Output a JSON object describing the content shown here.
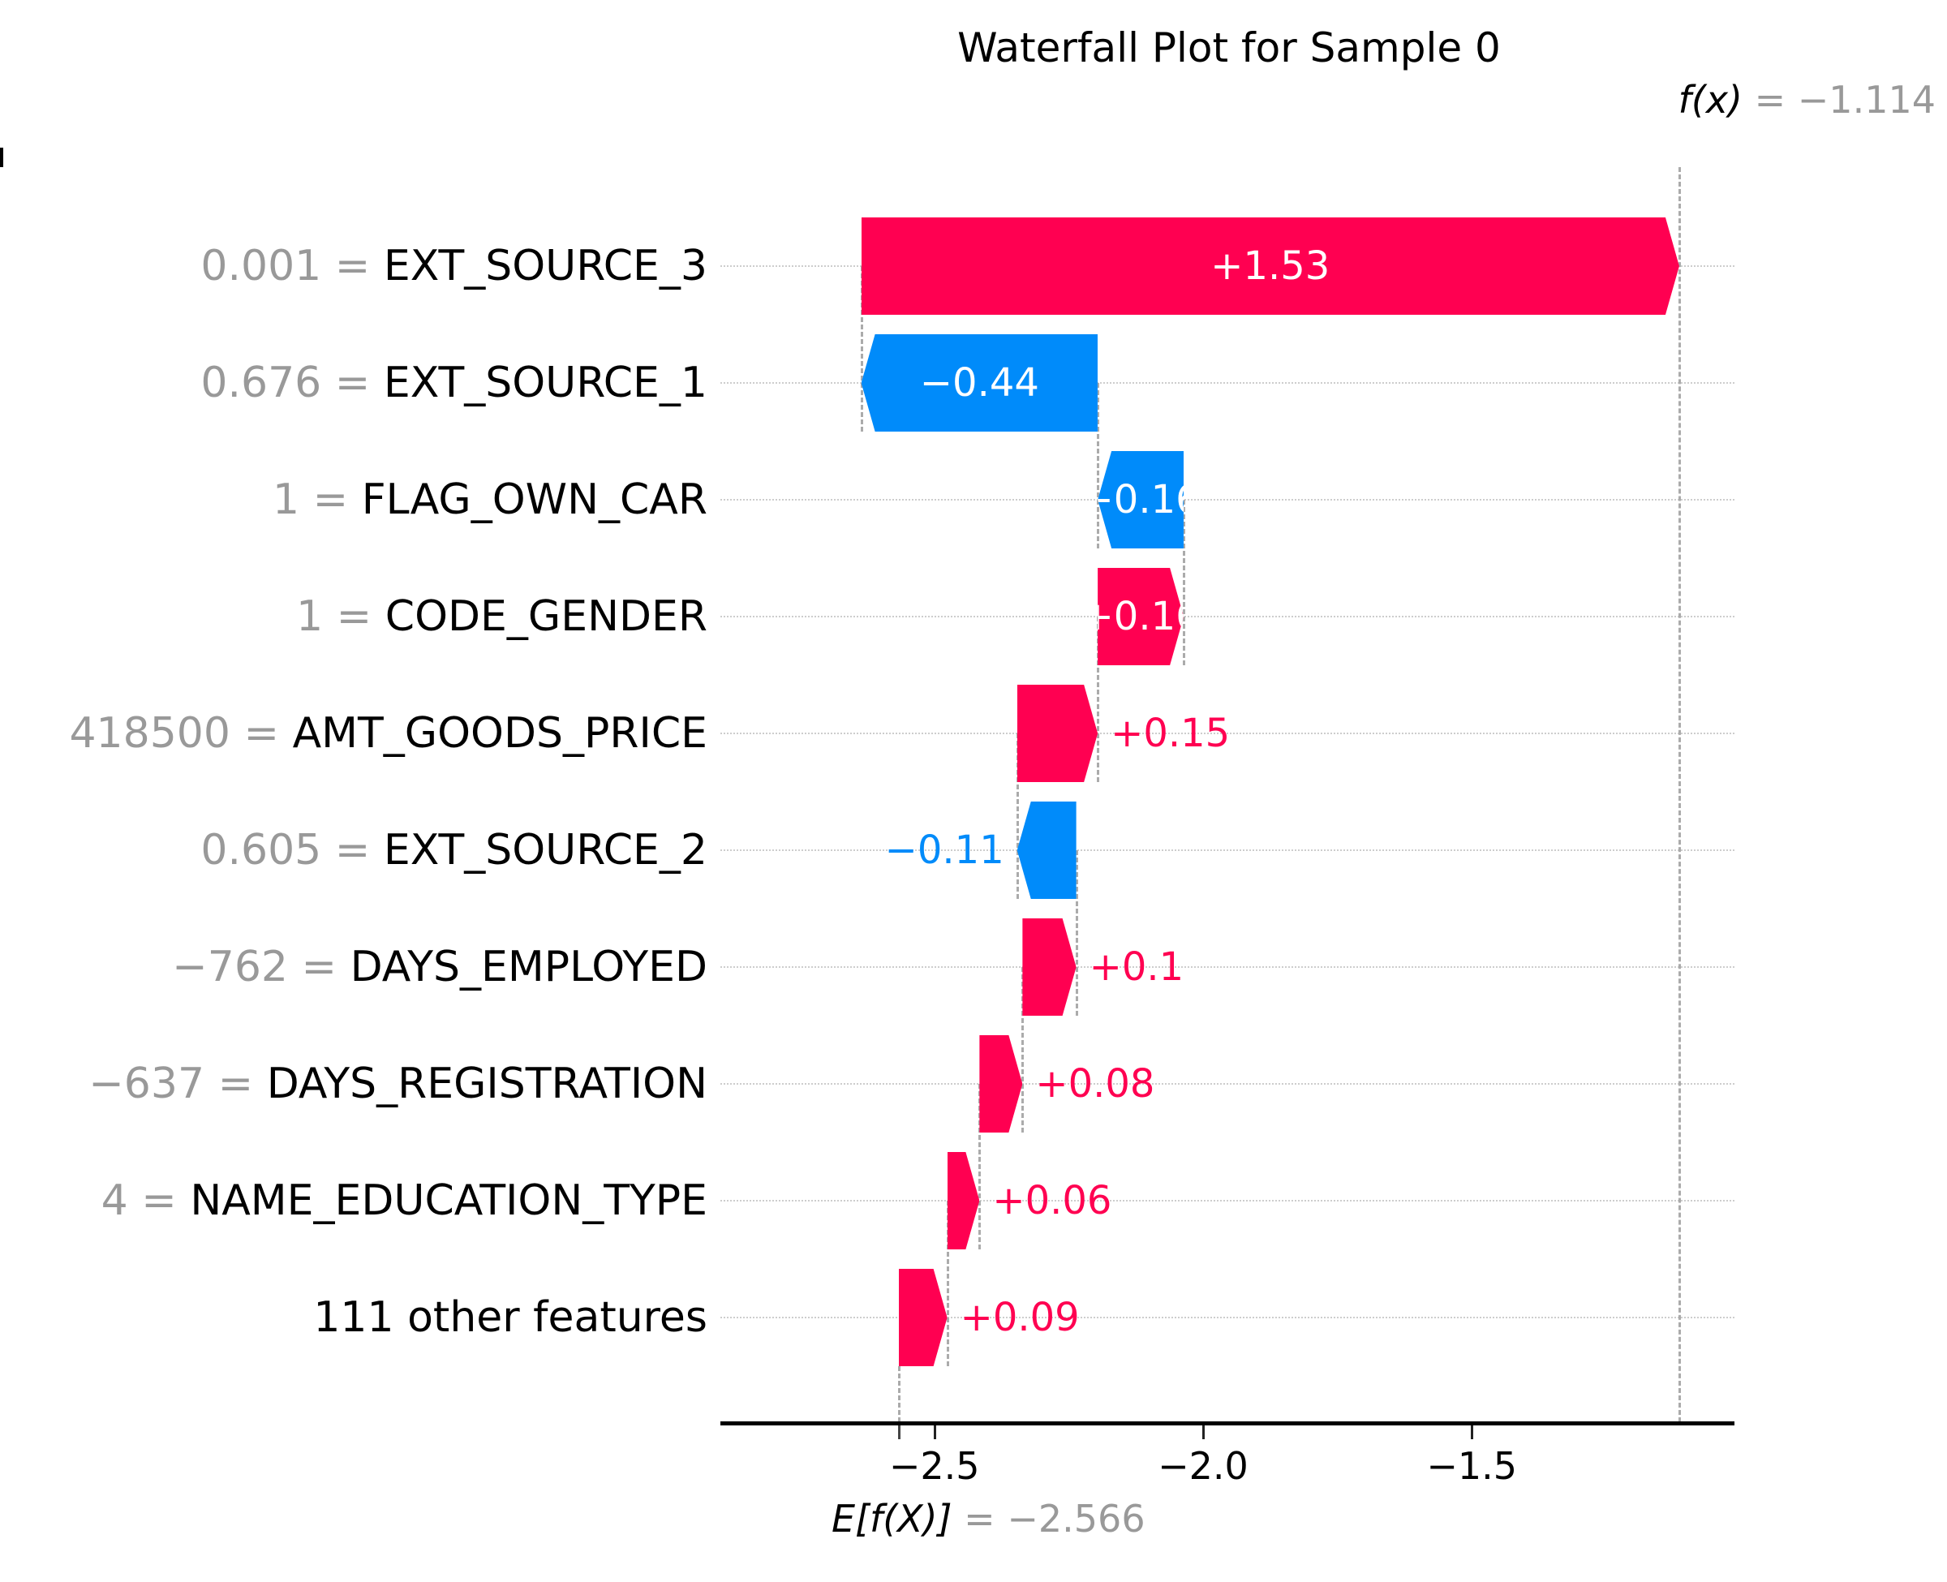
{
  "title": "Waterfall Plot for Sample 0",
  "annotations": {
    "fx": {
      "math": "f(x)",
      "rest": " = −1.114"
    },
    "efx": {
      "math": "E[f(X)]",
      "rest": " = −2.566"
    }
  },
  "colors": {
    "positive": "#ff0051",
    "negative": "#008bfa",
    "gray_text": "#999999",
    "connector": "#ababab",
    "gridline": "#cdcdcd"
  },
  "chart_data": {
    "type": "bar",
    "subtype": "waterfall",
    "title": "Waterfall Plot for Sample 0",
    "base_value": -2.566,
    "prediction": -1.114,
    "xlabel": "",
    "ylabel": "",
    "xlim": [
      -2.9,
      -1.01
    ],
    "x_axis": {
      "ticks": [
        -2.5,
        -2.0,
        -1.5
      ],
      "tick_labels": [
        "−2.5",
        "−2.0",
        "−1.5"
      ]
    },
    "grid": "dotted-row-lines",
    "legend": "none",
    "rows": [
      {
        "feature": "EXT_SOURCE_3",
        "data_value": "0.001",
        "shap": 1.53,
        "label": "+1.53",
        "x0": -2.636,
        "x1": -1.114,
        "direction": "positive",
        "label_placement": "inside"
      },
      {
        "feature": "EXT_SOURCE_1",
        "data_value": "0.676",
        "shap": -0.44,
        "label": "−0.44",
        "x0": -2.636,
        "x1": -2.196,
        "direction": "negative",
        "label_placement": "inside"
      },
      {
        "feature": "FLAG_OWN_CAR",
        "data_value": "1",
        "shap": -0.16,
        "label": "−0.16",
        "x0": -2.196,
        "x1": -2.036,
        "direction": "negative",
        "label_placement": "inside"
      },
      {
        "feature": "CODE_GENDER",
        "data_value": "1",
        "shap": 0.16,
        "label": "+0.16",
        "x0": -2.196,
        "x1": -2.036,
        "direction": "positive",
        "label_placement": "inside"
      },
      {
        "feature": "AMT_GOODS_PRICE",
        "data_value": "418500",
        "shap": 0.15,
        "label": "+0.15",
        "x0": -2.346,
        "x1": -2.196,
        "direction": "positive",
        "label_placement": "outside"
      },
      {
        "feature": "EXT_SOURCE_2",
        "data_value": "0.605",
        "shap": -0.11,
        "label": "−0.11",
        "x0": -2.346,
        "x1": -2.236,
        "direction": "negative",
        "label_placement": "outside"
      },
      {
        "feature": "DAYS_EMPLOYED",
        "data_value": "−762",
        "shap": 0.1,
        "label": "+0.1",
        "x0": -2.336,
        "x1": -2.236,
        "direction": "positive",
        "label_placement": "outside"
      },
      {
        "feature": "DAYS_REGISTRATION",
        "data_value": "−637",
        "shap": 0.08,
        "label": "+0.08",
        "x0": -2.416,
        "x1": -2.336,
        "direction": "positive",
        "label_placement": "outside"
      },
      {
        "feature": "NAME_EDUCATION_TYPE",
        "data_value": "4",
        "shap": 0.06,
        "label": "+0.06",
        "x0": -2.476,
        "x1": -2.416,
        "direction": "positive",
        "label_placement": "outside"
      },
      {
        "feature": "111 other features",
        "data_value": null,
        "shap": 0.09,
        "label": "+0.09",
        "x0": -2.566,
        "x1": -2.476,
        "direction": "positive",
        "label_placement": "outside"
      }
    ]
  }
}
